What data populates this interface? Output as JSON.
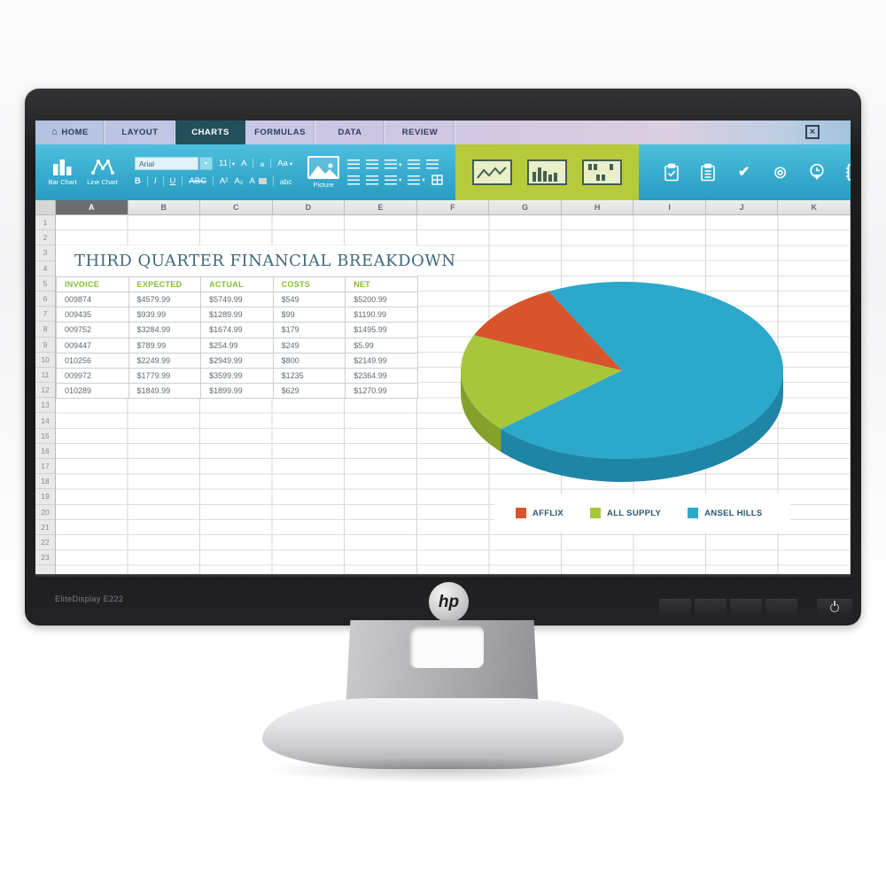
{
  "monitor": {
    "model_label": "EliteDisplay E222",
    "logo_text": "hp"
  },
  "icons": {
    "home": "⌂",
    "close": "×",
    "caret": "▾",
    "check": "✔",
    "target": "◎"
  },
  "app": {
    "tabs": [
      {
        "label": "HOME",
        "active": false,
        "has_home_icon": true
      },
      {
        "label": "LAYOUT",
        "active": false
      },
      {
        "label": "CHARTS",
        "active": true
      },
      {
        "label": "FORMULAS",
        "active": false
      },
      {
        "label": "DATA",
        "active": false
      },
      {
        "label": "REVIEW",
        "active": false
      }
    ],
    "toolbar": {
      "bar_chart_label": "Bar Chart",
      "line_chart_label": "Line Chart",
      "font_name": "Arial",
      "font_size": "11",
      "upper": "A",
      "lower": "a",
      "caps": "Aa",
      "bold": "B",
      "italic": "I",
      "underline": "U",
      "strike": "ABC",
      "superscript": "A²",
      "subscript": "A₂",
      "highlight": "A",
      "clear_format": "abc",
      "picture_label": "Picture"
    },
    "sheet": {
      "columns": [
        "A",
        "B",
        "C",
        "D",
        "E",
        "F",
        "G",
        "H",
        "I",
        "J",
        "K"
      ],
      "selected_column": "A",
      "row_count": 23,
      "title": "THIRD QUARTER FINANCIAL BREAKDOWN",
      "table": {
        "headers": [
          "INVOICE",
          "EXPECTED",
          "ACTUAL",
          "COSTS",
          "NET"
        ],
        "rows": [
          [
            "009874",
            "$4579.99",
            "$5749.99",
            "$549",
            "$5200.99"
          ],
          [
            "009435",
            "$939.99",
            "$1289.99",
            "$99",
            "$1190.99"
          ],
          [
            "009752",
            "$3284.99",
            "$1674.99",
            "$179",
            "$1495.99"
          ],
          [
            "009447",
            "$789.99",
            "$254.99",
            "$249",
            "$5.99"
          ],
          [
            "010256",
            "$2249.99",
            "$2949.99",
            "$800",
            "$2149.99"
          ],
          [
            "009972",
            "$1779.99",
            "$3599.99",
            "$1235",
            "$2364.99"
          ],
          [
            "010289",
            "$1849.99",
            "$1899.99",
            "$629",
            "$1270.99"
          ]
        ]
      }
    }
  },
  "chart_data": {
    "type": "pie",
    "style": "3d",
    "legend_position": "bottom",
    "start_angle_deg": 333,
    "slices": [
      {
        "label": "ANSEL HILLS",
        "value": 71,
        "color": "#2ba8ca",
        "side_color": "#1f85a5"
      },
      {
        "label": "ALL SUPPLY",
        "value": 18,
        "color": "#a8c63b",
        "side_color": "#86a02c"
      },
      {
        "label": "AFFLIX",
        "value": 11,
        "color": "#d9532c",
        "side_color": "#b53f1f"
      }
    ]
  }
}
